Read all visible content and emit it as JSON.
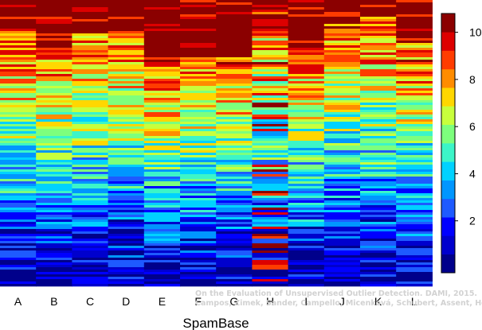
{
  "chart_data": {
    "type": "heatmap",
    "title": "",
    "xlabel": "SpamBase",
    "ylabel": "",
    "categories": [
      "A",
      "B",
      "C",
      "D",
      "E",
      "F",
      "G",
      "H",
      "I",
      "J",
      "K",
      "L"
    ],
    "colorbar": {
      "ticks": [
        2,
        4,
        6,
        8,
        10
      ],
      "range": [
        0,
        11
      ],
      "colors": [
        "#00008b",
        "#0000cd",
        "#0000ff",
        "#1e5aff",
        "#0096ff",
        "#00d2ff",
        "#3cf5c8",
        "#7dff7d",
        "#c8ff3c",
        "#ffd700",
        "#ff8c00",
        "#ff3c00",
        "#dd0000",
        "#8b0000"
      ]
    },
    "columns": [
      {
        "label": "A",
        "high_share": 0.11
      },
      {
        "label": "B",
        "high_share": 0.17
      },
      {
        "label": "C",
        "high_share": 0.12
      },
      {
        "label": "D",
        "high_share": 0.11
      },
      {
        "label": "E",
        "high_share": 0.22
      },
      {
        "label": "F",
        "high_share": 0.2
      },
      {
        "label": "G",
        "high_share": 0.18
      },
      {
        "label": "H",
        "high_share": 0.03
      },
      {
        "label": "I",
        "high_share": 0.17
      },
      {
        "label": "J",
        "high_share": 0.08
      },
      {
        "label": "K",
        "high_share": 0.06
      },
      {
        "label": "L",
        "high_share": 0.15
      }
    ],
    "watermark": [
      "On the Evaluation of Unsupervised Outlier Detection. DAMI, 2015.",
      "Campos, Zimek, Sander, Campello, Micenková, Schubert, Assent, Houle"
    ]
  }
}
